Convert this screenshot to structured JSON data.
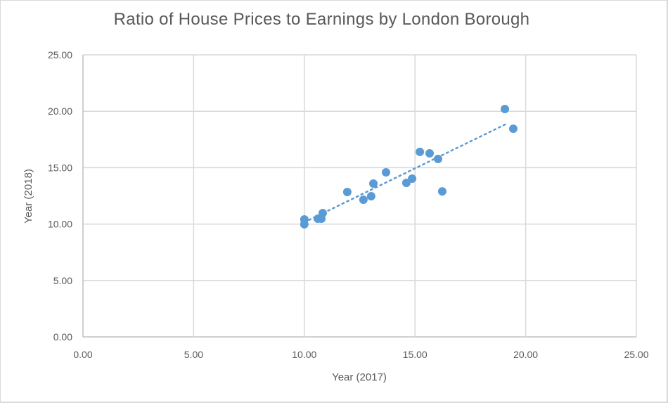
{
  "chart_data": {
    "type": "scatter",
    "title": "Ratio of House Prices to Earnings by London Borough",
    "xlabel": "Year (2017)",
    "ylabel": "Year (2018)",
    "xlim": [
      0,
      25
    ],
    "ylim": [
      0,
      25
    ],
    "x_ticks": [
      "0.00",
      "5.00",
      "10.00",
      "15.00",
      "20.00",
      "25.00"
    ],
    "y_ticks": [
      "0.00",
      "5.00",
      "10.00",
      "15.00",
      "20.00",
      "25.00"
    ],
    "grid": true,
    "legend": null,
    "marker_color": "#5b9bd5",
    "trendline": {
      "type": "linear",
      "style": "dotted",
      "color": "#5b9bd5",
      "x_start": 10.0,
      "y_start": 10.16,
      "x_end": 19.2,
      "y_end": 18.95
    },
    "points": [
      {
        "x": 10.0,
        "y": 10.41
      },
      {
        "x": 10.0,
        "y": 9.98
      },
      {
        "x": 10.61,
        "y": 10.47
      },
      {
        "x": 10.77,
        "y": 10.47
      },
      {
        "x": 10.83,
        "y": 10.97
      },
      {
        "x": 11.94,
        "y": 12.84
      },
      {
        "x": 12.67,
        "y": 12.16
      },
      {
        "x": 13.02,
        "y": 12.47
      },
      {
        "x": 13.12,
        "y": 13.59
      },
      {
        "x": 13.69,
        "y": 14.59
      },
      {
        "x": 14.61,
        "y": 13.65
      },
      {
        "x": 14.87,
        "y": 14.03
      },
      {
        "x": 15.22,
        "y": 16.4
      },
      {
        "x": 15.66,
        "y": 16.27
      },
      {
        "x": 16.04,
        "y": 15.77
      },
      {
        "x": 16.23,
        "y": 12.9
      },
      {
        "x": 19.06,
        "y": 20.2
      },
      {
        "x": 19.44,
        "y": 18.45
      }
    ]
  }
}
